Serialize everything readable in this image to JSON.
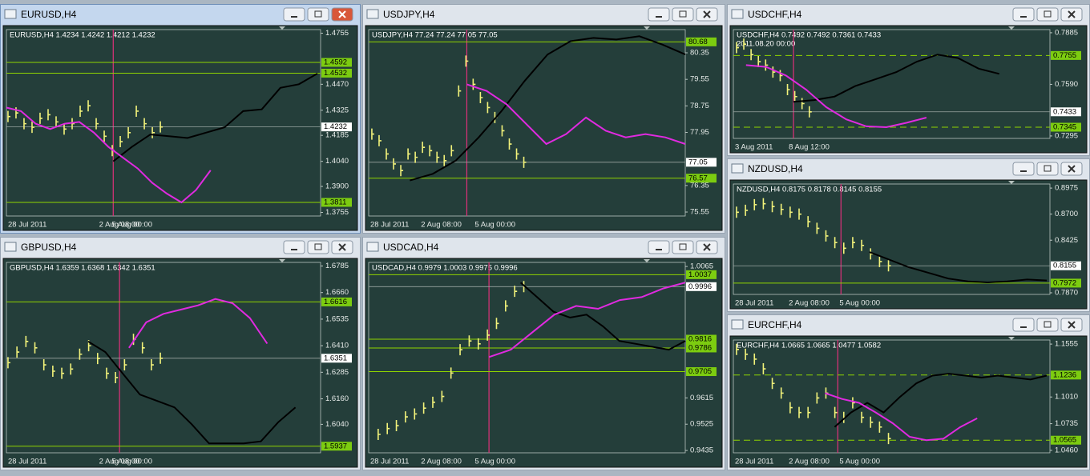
{
  "windows": [
    {
      "title": "EURUSD,H4",
      "header": "EURUSD,H4  1.4234 1.4242 1.4212 1.4232",
      "ylim": [
        1.3735,
        1.4775
      ],
      "ticks": [
        1.4755,
        {
          "value": 1.447,
          "label": "1.4470"
        },
        1.4325,
        1.4185,
        {
          "value": 1.404,
          "label": "1.4040"
        },
        {
          "value": 1.39,
          "label": "1.3900"
        },
        1.3755
      ],
      "levels": [
        1.4592,
        1.4532,
        1.3811
      ],
      "level_style": "solid",
      "current": 1.4232,
      "dates": [
        "28 Jul 2011",
        "2 Aug 08:00",
        "5 Aug 00:00"
      ],
      "bars": [
        1.429,
        1.431,
        1.425,
        1.423,
        1.428,
        1.43,
        1.426,
        1.422,
        1.425,
        1.432,
        1.435,
        1.425,
        1.418,
        1.41,
        1.415,
        1.42,
        1.432,
        1.425,
        1.42,
        1.4232
      ],
      "black": [
        1.404,
        1.412,
        1.419,
        1.418,
        1.417,
        1.42,
        1.423,
        1.432,
        1.433,
        1.445,
        1.447,
        1.453
      ],
      "magenta": [
        1.434,
        1.432,
        1.425,
        1.422,
        1.425,
        1.426,
        1.42,
        1.412,
        1.406,
        1.4,
        1.392,
        1.386,
        1.3811,
        1.388,
        1.399
      ]
    },
    {
      "title": "USDJPY,H4",
      "header": "USDJPY,H4  77.24 77.24 77.05 77.05",
      "ylim": [
        75.43,
        81.05
      ],
      "ticks": [
        80.35,
        79.55,
        78.75,
        77.95,
        76.35,
        75.55
      ],
      "levels": [
        80.68,
        76.57
      ],
      "level_style": "solid",
      "current": 77.05,
      "dates": [
        "28 Jul 2011",
        "2 Aug 08:00",
        "5 Aug 00:00"
      ],
      "bars": [
        77.9,
        77.7,
        77.3,
        77.0,
        76.8,
        77.3,
        77.2,
        77.5,
        77.4,
        77.2,
        77.1,
        77.4,
        79.2,
        80.1,
        79.4,
        79.0,
        78.7,
        78.4,
        78.0,
        77.6,
        77.3,
        77.05
      ],
      "black": [
        76.5,
        76.7,
        77.1,
        77.8,
        78.6,
        79.5,
        80.3,
        80.7,
        80.8,
        80.75,
        80.85,
        80.6,
        80.3
      ],
      "magenta": [
        79.4,
        79.2,
        78.8,
        78.2,
        77.6,
        77.9,
        78.4,
        78.0,
        77.8,
        77.9,
        77.8,
        77.6
      ]
    },
    {
      "title": "USDCHF,H4",
      "header": "USDCHF,H4  0.7492 0.7492 0.7361 0.7433",
      "subheader": "2011.08.20 00:00",
      "ylim": [
        0.7281,
        0.7903
      ],
      "ticks": [
        0.7885,
        {
          "value": 0.759,
          "label": "0.7590"
        },
        0.7295
      ],
      "levels": [
        0.7755,
        0.7345
      ],
      "level_style": "dashed",
      "current": 0.7433,
      "dates": [
        "3 Aug 2011",
        "8 Aug 12:00"
      ],
      "bars": [
        0.78,
        0.782,
        0.776,
        0.772,
        0.77,
        0.766,
        0.764,
        0.756,
        0.752,
        0.748,
        0.7433
      ],
      "black": [
        0.749,
        0.75,
        0.752,
        0.758,
        0.762,
        0.766,
        0.772,
        0.776,
        0.774,
        0.768,
        0.765
      ],
      "magenta": [
        0.77,
        0.769,
        0.764,
        0.756,
        0.746,
        0.739,
        0.735,
        0.7345,
        0.737,
        0.74
      ]
    },
    {
      "title": "GBPUSD,H4",
      "header": "GBPUSD,H4  1.6359 1.6368 1.6342 1.6351",
      "ylim": [
        1.5906,
        1.6802
      ],
      "ticks": [
        1.6785,
        {
          "value": 1.666,
          "label": "1.6660"
        },
        1.6535,
        {
          "value": 1.641,
          "label": "1.6410"
        },
        1.6285,
        {
          "value": 1.616,
          "label": "1.6160"
        },
        {
          "value": 1.604,
          "label": "1.6040"
        }
      ],
      "levels": [
        1.6616,
        1.5937
      ],
      "level_style": "solid",
      "current": 1.6351,
      "dates": [
        "28 Jul 2011",
        "2 Aug 08:00",
        "5 Aug 00:00"
      ],
      "bars": [
        1.633,
        1.638,
        1.643,
        1.64,
        1.632,
        1.629,
        1.628,
        1.63,
        1.637,
        1.641,
        1.635,
        1.628,
        1.626,
        1.632,
        1.644,
        1.64,
        1.632,
        1.6351
      ],
      "black": [
        1.643,
        1.638,
        1.628,
        1.618,
        1.615,
        1.612,
        1.604,
        1.595,
        1.595,
        1.595,
        1.596,
        1.605,
        1.612
      ],
      "magenta": [
        1.64,
        1.652,
        1.656,
        1.658,
        1.66,
        1.663,
        1.661,
        1.654,
        1.642
      ]
    },
    {
      "title": "USDCAD,H4",
      "header": "USDCAD,H4  0.9979 1.0003 0.9975 0.9996",
      "ylim": [
        0.9427,
        1.0079
      ],
      "ticks": [
        1.0065,
        0.9615,
        0.9525,
        0.9435
      ],
      "levels": [
        1.0037,
        0.9816,
        0.9786,
        0.9705
      ],
      "level_style": "solid",
      "current": 0.9996,
      "dates": [
        "28 Jul 2011",
        "2 Aug 08:00",
        "5 Aug 00:00"
      ],
      "bars": [
        0.949,
        0.951,
        0.952,
        0.955,
        0.956,
        0.958,
        0.96,
        0.962,
        0.97,
        0.978,
        0.981,
        0.98,
        0.983,
        0.987,
        0.993,
        0.998,
        0.9996
      ],
      "black": [
        1.001,
        0.996,
        0.991,
        0.989,
        0.99,
        0.986,
        0.981,
        0.98,
        0.979,
        0.978,
        0.981
      ],
      "magenta": [
        0.9755,
        0.978,
        0.984,
        0.99,
        0.993,
        0.992,
        0.995,
        0.996,
        0.999,
        1.001
      ]
    },
    {
      "title": "NZDUSD,H4",
      "header": "NZDUSD,H4  0.8175 0.8178 0.8145 0.8155",
      "ylim": [
        0.7853,
        0.9018
      ],
      "ticks": [
        0.8975,
        {
          "value": 0.87,
          "label": "0.8700"
        },
        0.8425,
        {
          "value": 0.787,
          "label": "0.7870"
        }
      ],
      "levels": [
        0.7972
      ],
      "level_style": "solid",
      "current": 0.8155,
      "dates": [
        "28 Jul 2011",
        "2 Aug 08:00",
        "5 Aug 00:00"
      ],
      "bars": [
        0.872,
        0.874,
        0.88,
        0.881,
        0.878,
        0.875,
        0.872,
        0.87,
        0.862,
        0.855,
        0.847,
        0.84,
        0.834,
        0.84,
        0.837,
        0.828,
        0.82,
        0.8155
      ],
      "black": [
        0.83,
        0.822,
        0.814,
        0.808,
        0.802,
        0.799,
        0.798,
        0.799,
        0.801,
        0.8
      ]
    },
    {
      "title": "EURCHF,H4",
      "header": "EURCHF,H4  1.0665 1.0665 1.0477 1.0582",
      "ylim": [
        1.0435,
        1.1597
      ],
      "ticks": [
        1.1555,
        {
          "value": 1.101,
          "label": "1.1010"
        },
        1.0735,
        {
          "value": 1.046,
          "label": "1.0460"
        }
      ],
      "levels": [
        1.1236,
        1.0565
      ],
      "level_style": "dashed",
      "dates": [
        "28 Jul 2011",
        "2 Aug 08:00",
        "5 Aug 00:00"
      ],
      "bars": [
        1.15,
        1.145,
        1.14,
        1.13,
        1.115,
        1.105,
        1.09,
        1.085,
        1.085,
        1.1,
        1.105,
        1.085,
        1.08,
        1.095,
        1.08,
        1.075,
        1.07,
        1.0582
      ],
      "black": [
        1.07,
        1.085,
        1.095,
        1.085,
        1.101,
        1.115,
        1.123,
        1.125,
        1.123,
        1.121,
        1.123,
        1.121,
        1.119,
        1.123
      ],
      "magenta": [
        1.105,
        1.099,
        1.095,
        1.085,
        1.074,
        1.06,
        1.0565,
        1.058,
        1.07,
        1.079
      ]
    }
  ]
}
